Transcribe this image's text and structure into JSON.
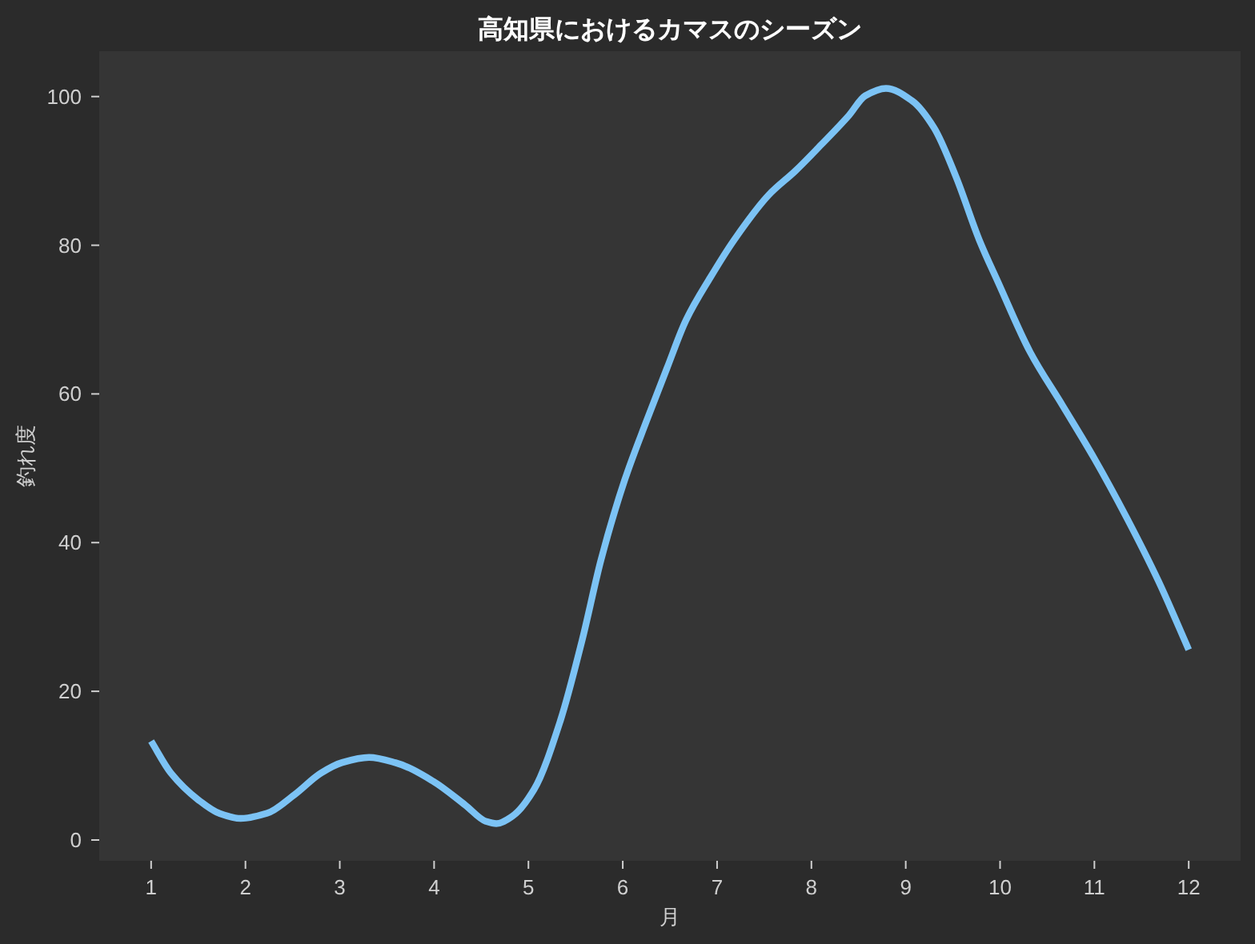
{
  "chart_data": {
    "type": "line",
    "title": "高知県におけるカマスのシーズン",
    "xlabel": "月",
    "ylabel": "釣れ度",
    "x": [
      1,
      1.21,
      1.5,
      1.72,
      1.95,
      2.23,
      2.52,
      2.8,
      3.02,
      3.31,
      3.59,
      3.99,
      4.33,
      4.55,
      4.66,
      4.83,
      5.06,
      5.34,
      5.57,
      5.77,
      6.02,
      6.25,
      6.47,
      6.67,
      6.93,
      7.18,
      7.55,
      7.83,
      8.11,
      8.4,
      8.57,
      8.79,
      9.07,
      9.3,
      9.53,
      9.78,
      9.98,
      10.32,
      10.66,
      11.0,
      11.34,
      11.68,
      12.0
    ],
    "values": [
      13.3,
      9.0,
      5.4,
      3.6,
      2.9,
      3.6,
      6.1,
      9.0,
      10.4,
      11.1,
      10.4,
      7.9,
      4.7,
      2.5,
      2.2,
      3.2,
      6.8,
      16.1,
      26.9,
      37.7,
      48.4,
      56.3,
      63.5,
      69.9,
      75.7,
      80.7,
      86.8,
      90.0,
      93.6,
      97.5,
      100.1,
      101.1,
      99.4,
      95.8,
      89.3,
      80.7,
      75.0,
      65.6,
      58.5,
      51.3,
      43.4,
      34.8,
      25.6
    ],
    "color": "#7cc3f5",
    "line_style": "solid",
    "xlim": [
      0.45,
      12.55
    ],
    "ylim": [
      -2.8,
      106.1
    ],
    "xticks": [
      1,
      2,
      3,
      4,
      5,
      6,
      7,
      8,
      9,
      10,
      11,
      12
    ],
    "yticks": [
      0,
      20,
      40,
      60,
      80,
      100
    ]
  }
}
